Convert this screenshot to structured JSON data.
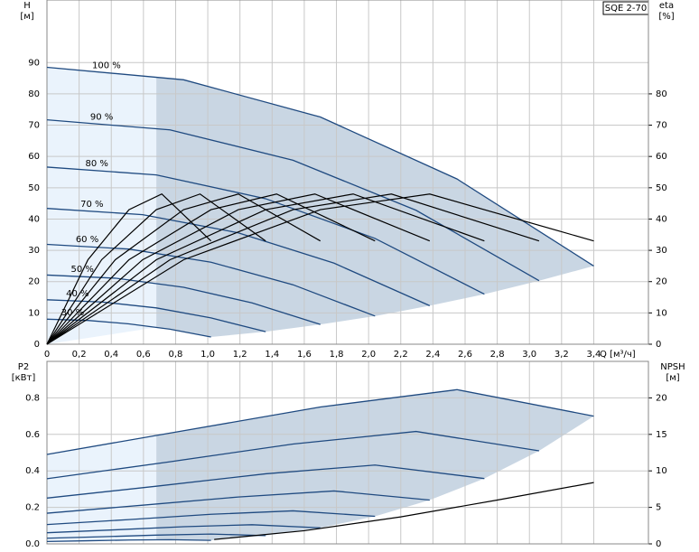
{
  "chart_data": [
    {
      "type": "line",
      "title": "SQE 2-70",
      "ylabel": "H",
      "yunit": "[м]",
      "y2label": "eta",
      "y2unit": "[%]",
      "xlabel": "Q [м³/ч]",
      "xlim": [
        0,
        3.74
      ],
      "ylim": [
        0,
        110
      ],
      "y2lim": [
        0,
        110
      ],
      "grid": true,
      "xticks": [
        0,
        {
          "value": 0.2,
          "label": "0,2"
        },
        {
          "value": 0.4,
          "label": "0,4"
        },
        {
          "value": 0.6,
          "label": "0,6"
        },
        {
          "value": 0.8,
          "label": "0,8"
        },
        {
          "value": 1.0,
          "label": "1,0"
        },
        {
          "value": 1.2,
          "label": "1,2"
        },
        {
          "value": 1.4,
          "label": "1,4"
        },
        {
          "value": 1.6,
          "label": "1,6"
        },
        {
          "value": 1.8,
          "label": "1,8"
        },
        {
          "value": 2.0,
          "label": "2,0"
        },
        {
          "value": 2.2,
          "label": "2,2"
        },
        {
          "value": 2.4,
          "label": "2,4"
        },
        {
          "value": 2.6,
          "label": "2,6"
        },
        {
          "value": 2.8,
          "label": "2,8"
        },
        {
          "value": 3.0,
          "label": "3,0"
        },
        {
          "value": 3.2,
          "label": "3,2"
        },
        {
          "value": 3.4,
          "label": "3,4"
        }
      ],
      "yticks": [
        0,
        10,
        20,
        30,
        40,
        50,
        60,
        70,
        80,
        90
      ],
      "y2ticks": [
        0,
        10,
        20,
        30,
        40,
        50,
        60,
        70,
        80
      ],
      "series": [
        {
          "name": "100 %",
          "color": "#1f4a80",
          "x": [
            0,
            0.85,
            1.7,
            2.55,
            3.4
          ],
          "values": [
            88.5,
            84.5,
            72.6,
            52.8,
            25.0
          ]
        },
        {
          "name": "90 %",
          "color": "#1f4a80",
          "x": [
            0,
            0.765,
            1.53,
            2.295,
            3.06
          ],
          "values": [
            71.7,
            68.5,
            58.8,
            42.8,
            20.3
          ]
        },
        {
          "name": "80 %",
          "color": "#1f4a80",
          "x": [
            0,
            0.68,
            1.36,
            2.04,
            2.72
          ],
          "values": [
            56.6,
            54.1,
            46.5,
            33.8,
            16.0
          ]
        },
        {
          "name": "70 %",
          "color": "#1f4a80",
          "x": [
            0,
            0.595,
            1.19,
            1.785,
            2.38
          ],
          "values": [
            43.4,
            41.4,
            35.6,
            25.9,
            12.3
          ]
        },
        {
          "name": "60 %",
          "color": "#1f4a80",
          "x": [
            0,
            0.51,
            1.02,
            1.53,
            2.04
          ],
          "values": [
            31.9,
            30.4,
            26.2,
            19.0,
            9.0
          ]
        },
        {
          "name": "50 %",
          "color": "#1f4a80",
          "x": [
            0,
            0.425,
            0.85,
            1.275,
            1.7
          ],
          "values": [
            22.1,
            21.1,
            18.2,
            13.2,
            6.3
          ]
        },
        {
          "name": "40 %",
          "color": "#1f4a80",
          "x": [
            0,
            0.34,
            0.68,
            1.02,
            1.36
          ],
          "values": [
            14.2,
            13.5,
            11.6,
            8.4,
            4.0
          ]
        },
        {
          "name": "30 %",
          "color": "#1f4a80",
          "x": [
            0,
            0.255,
            0.51,
            0.765,
            1.02
          ],
          "values": [
            8.0,
            7.6,
            6.5,
            4.8,
            2.3
          ]
        },
        {
          "axis": "y2",
          "color": "#000000",
          "x": [
            0,
            0.85,
            1.7,
            2.38,
            3.4
          ],
          "values": [
            0,
            27,
            43,
            48,
            33
          ]
        },
        {
          "axis": "y2",
          "color": "#000000",
          "x": [
            0,
            0.765,
            1.53,
            2.142,
            3.06
          ],
          "values": [
            0,
            27,
            43,
            48,
            33
          ]
        },
        {
          "axis": "y2",
          "color": "#000000",
          "x": [
            0,
            0.68,
            1.36,
            1.904,
            2.72
          ],
          "values": [
            0,
            27,
            43,
            48,
            33
          ]
        },
        {
          "axis": "y2",
          "color": "#000000",
          "x": [
            0,
            0.595,
            1.19,
            1.666,
            2.38
          ],
          "values": [
            0,
            27,
            43,
            48,
            33
          ]
        },
        {
          "axis": "y2",
          "color": "#000000",
          "x": [
            0,
            0.51,
            1.02,
            1.428,
            2.04
          ],
          "values": [
            0,
            27,
            43,
            48,
            33
          ]
        },
        {
          "axis": "y2",
          "color": "#000000",
          "x": [
            0,
            0.425,
            0.85,
            1.19,
            1.7
          ],
          "values": [
            0,
            27,
            43,
            48,
            33
          ]
        },
        {
          "axis": "y2",
          "color": "#000000",
          "x": [
            0,
            0.34,
            0.68,
            0.952,
            1.36
          ],
          "values": [
            0,
            27,
            43,
            48,
            33
          ]
        },
        {
          "axis": "y2",
          "color": "#000000",
          "x": [
            0,
            0.255,
            0.51,
            0.714,
            1.02
          ],
          "values": [
            0,
            27,
            43,
            48,
            33
          ]
        }
      ]
    },
    {
      "type": "line",
      "ylabel": "P2",
      "yunit": "[кВт]",
      "y2label": "NPSH",
      "y2unit": "[м]",
      "xlim": [
        0,
        3.74
      ],
      "ylim": [
        0,
        1.0
      ],
      "y2lim": [
        0,
        25
      ],
      "grid": true,
      "xticks": [
        0,
        0.2,
        0.4,
        0.6,
        0.8,
        1.0,
        1.2,
        1.4,
        1.6,
        1.8,
        2.0,
        2.2,
        2.4,
        2.6,
        2.8,
        3.0,
        3.2,
        3.4
      ],
      "yticks": [
        {
          "value": 0,
          "label": "0.0"
        },
        0.2,
        0.4,
        0.6,
        0.8
      ],
      "y2ticks": [
        0,
        5,
        10,
        15,
        20
      ],
      "series": [
        {
          "color": "#1f4a80",
          "x": [
            0,
            0.85,
            1.7,
            2.55,
            3.4
          ],
          "values": [
            0.49,
            0.62,
            0.75,
            0.845,
            0.7
          ]
        },
        {
          "color": "#1f4a80",
          "x": [
            0,
            0.765,
            1.53,
            2.295,
            3.06
          ],
          "values": [
            0.357,
            0.45,
            0.547,
            0.616,
            0.51
          ]
        },
        {
          "color": "#1f4a80",
          "x": [
            0,
            0.68,
            1.36,
            2.04,
            2.72
          ],
          "values": [
            0.251,
            0.316,
            0.384,
            0.432,
            0.358
          ]
        },
        {
          "color": "#1f4a80",
          "x": [
            0,
            0.595,
            1.19,
            1.785,
            2.38
          ],
          "values": [
            0.168,
            0.212,
            0.257,
            0.29,
            0.24
          ]
        },
        {
          "color": "#1f4a80",
          "x": [
            0,
            0.51,
            1.02,
            1.53,
            2.04
          ],
          "values": [
            0.106,
            0.133,
            0.162,
            0.181,
            0.151
          ]
        },
        {
          "color": "#1f4a80",
          "x": [
            0,
            0.425,
            0.85,
            1.275,
            1.7
          ],
          "values": [
            0.061,
            0.077,
            0.094,
            0.105,
            0.088
          ]
        },
        {
          "color": "#1f4a80",
          "x": [
            0,
            0.34,
            0.68,
            1.02,
            1.36
          ],
          "values": [
            0.031,
            0.039,
            0.048,
            0.054,
            0.045
          ]
        },
        {
          "color": "#1f4a80",
          "x": [
            0,
            0.255,
            0.51,
            0.765,
            1.02
          ],
          "values": [
            0.013,
            0.017,
            0.021,
            0.023,
            0.019
          ]
        },
        {
          "axis": "y2",
          "color": "#000000",
          "x": [
            1.04,
            1.6,
            2.2,
            2.8,
            3.4
          ],
          "values": [
            0.6,
            1.8,
            3.7,
            6.0,
            8.4
          ]
        }
      ]
    }
  ]
}
